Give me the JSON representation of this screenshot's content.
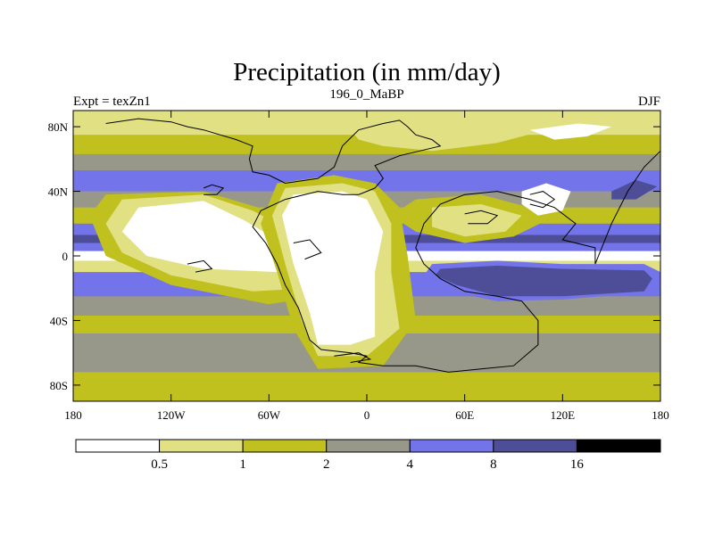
{
  "title": "Precipitation (in mm/day)",
  "subtitle_left": "Expt = texZn1",
  "subtitle_center": "196_0_MaBP",
  "subtitle_right": "DJF",
  "lat_ticks": [
    {
      "value": 80,
      "label": "80N"
    },
    {
      "value": 40,
      "label": "40N"
    },
    {
      "value": 0,
      "label": "0"
    },
    {
      "value": -40,
      "label": "40S"
    },
    {
      "value": -80,
      "label": "80S"
    }
  ],
  "lon_ticks": [
    {
      "value": -180,
      "label": "180"
    },
    {
      "value": -120,
      "label": "120W"
    },
    {
      "value": -60,
      "label": "60W"
    },
    {
      "value": 0,
      "label": "0"
    },
    {
      "value": 60,
      "label": "60E"
    },
    {
      "value": 120,
      "label": "120E"
    },
    {
      "value": 180,
      "label": "180"
    }
  ],
  "colorbar": {
    "levels": [
      "0.5",
      "1",
      "2",
      "4",
      "8",
      "16"
    ],
    "colors": [
      "#ffffff",
      "#e1e184",
      "#c0c01e",
      "#97978a",
      "#7474ea",
      "#4e4e98",
      "#000000"
    ]
  },
  "chart_data": {
    "type": "heatmap",
    "title": "Precipitation (in mm/day)",
    "variable": "Precipitation",
    "units": "mm/day",
    "experiment": "texZn1",
    "period": "196_0_MaBP",
    "season": "DJF",
    "lon_range": [
      -180,
      180
    ],
    "lat_range": [
      -90,
      90
    ],
    "contour_levels": [
      0.5,
      1,
      2,
      4,
      8,
      16
    ],
    "zonal_bands": [
      {
        "lat_from": 90,
        "lat_to": 75,
        "class": 1
      },
      {
        "lat_from": 75,
        "lat_to": 63,
        "class": 2
      },
      {
        "lat_from": 63,
        "lat_to": 53,
        "class": 3
      },
      {
        "lat_from": 53,
        "lat_to": 40,
        "class": 4
      },
      {
        "lat_from": 40,
        "lat_to": 30,
        "class": 3
      },
      {
        "lat_from": 30,
        "lat_to": 20,
        "class": 2
      },
      {
        "lat_from": 20,
        "lat_to": 13,
        "class": 4
      },
      {
        "lat_from": 13,
        "lat_to": 8,
        "class": 5
      },
      {
        "lat_from": 8,
        "lat_to": 3,
        "class": 4
      },
      {
        "lat_from": 3,
        "lat_to": -3,
        "class": 0
      },
      {
        "lat_from": -3,
        "lat_to": -10,
        "class": 1
      },
      {
        "lat_from": -10,
        "lat_to": -25,
        "class": 4
      },
      {
        "lat_from": -25,
        "lat_to": -37,
        "class": 3
      },
      {
        "lat_from": -37,
        "lat_to": -48,
        "class": 2
      },
      {
        "lat_from": -48,
        "lat_to": -72,
        "class": 3
      },
      {
        "lat_from": -72,
        "lat_to": -90,
        "class": 2
      }
    ],
    "regions": [
      {
        "class": 2,
        "points": [
          [
            -160,
            38
          ],
          [
            -100,
            40
          ],
          [
            -60,
            28
          ],
          [
            -30,
            12
          ],
          [
            -20,
            -5
          ],
          [
            -30,
            -25
          ],
          [
            -60,
            -30
          ],
          [
            -120,
            -18
          ],
          [
            -160,
            0
          ],
          [
            -170,
            25
          ]
        ]
      },
      {
        "class": 1,
        "points": [
          [
            -150,
            35
          ],
          [
            -100,
            38
          ],
          [
            -70,
            28
          ],
          [
            -40,
            12
          ],
          [
            -25,
            -5
          ],
          [
            -35,
            -20
          ],
          [
            -70,
            -22
          ],
          [
            -120,
            -12
          ],
          [
            -150,
            2
          ],
          [
            -160,
            20
          ]
        ]
      },
      {
        "class": 0,
        "points": [
          [
            -140,
            30
          ],
          [
            -100,
            34
          ],
          [
            -75,
            22
          ],
          [
            -55,
            10
          ],
          [
            -40,
            -5
          ],
          [
            -55,
            -10
          ],
          [
            -100,
            -8
          ],
          [
            -135,
            0
          ],
          [
            -150,
            15
          ]
        ]
      },
      {
        "class": 2,
        "points": [
          [
            -55,
            45
          ],
          [
            -20,
            50
          ],
          [
            5,
            45
          ],
          [
            20,
            30
          ],
          [
            25,
            0
          ],
          [
            30,
            -40
          ],
          [
            10,
            -68
          ],
          [
            -30,
            -70
          ],
          [
            -45,
            -45
          ],
          [
            -55,
            -10
          ],
          [
            -65,
            20
          ]
        ]
      },
      {
        "class": 1,
        "points": [
          [
            -50,
            42
          ],
          [
            -15,
            45
          ],
          [
            5,
            40
          ],
          [
            15,
            20
          ],
          [
            15,
            -10
          ],
          [
            20,
            -45
          ],
          [
            0,
            -62
          ],
          [
            -30,
            -62
          ],
          [
            -40,
            -40
          ],
          [
            -50,
            -5
          ],
          [
            -58,
            25
          ]
        ]
      },
      {
        "class": 0,
        "points": [
          [
            -45,
            38
          ],
          [
            -15,
            40
          ],
          [
            0,
            35
          ],
          [
            10,
            15
          ],
          [
            5,
            -10
          ],
          [
            5,
            -50
          ],
          [
            -10,
            -55
          ],
          [
            -30,
            -55
          ],
          [
            -35,
            -35
          ],
          [
            -45,
            -5
          ],
          [
            -52,
            25
          ]
        ]
      },
      {
        "class": 4,
        "points": [
          [
            40,
            -5
          ],
          [
            80,
            -3
          ],
          [
            120,
            -5
          ],
          [
            170,
            -5
          ],
          [
            180,
            -10
          ],
          [
            180,
            -22
          ],
          [
            120,
            -27
          ],
          [
            80,
            -28
          ],
          [
            50,
            -22
          ],
          [
            35,
            -12
          ]
        ]
      },
      {
        "class": 5,
        "points": [
          [
            45,
            -8
          ],
          [
            80,
            -6
          ],
          [
            120,
            -8
          ],
          [
            170,
            -9
          ],
          [
            175,
            -14
          ],
          [
            170,
            -22
          ],
          [
            120,
            -25
          ],
          [
            80,
            -25
          ],
          [
            55,
            -18
          ],
          [
            42,
            -12
          ]
        ]
      },
      {
        "class": 2,
        "points": [
          [
            30,
            35
          ],
          [
            70,
            38
          ],
          [
            100,
            30
          ],
          [
            110,
            22
          ],
          [
            90,
            12
          ],
          [
            60,
            8
          ],
          [
            30,
            15
          ],
          [
            15,
            25
          ]
        ]
      },
      {
        "class": 1,
        "points": [
          [
            40,
            30
          ],
          [
            70,
            32
          ],
          [
            95,
            25
          ],
          [
            85,
            15
          ],
          [
            60,
            12
          ],
          [
            40,
            18
          ]
        ]
      },
      {
        "class": 1,
        "points": [
          [
            -10,
            78
          ],
          [
            20,
            85
          ],
          [
            70,
            82
          ],
          [
            110,
            78
          ],
          [
            80,
            70
          ],
          [
            40,
            65
          ],
          [
            10,
            68
          ],
          [
            -5,
            72
          ]
        ]
      },
      {
        "class": 0,
        "points": [
          [
            95,
            40
          ],
          [
            110,
            45
          ],
          [
            125,
            40
          ],
          [
            120,
            28
          ],
          [
            105,
            25
          ],
          [
            95,
            32
          ]
        ]
      },
      {
        "class": 5,
        "points": [
          [
            150,
            40
          ],
          [
            165,
            47
          ],
          [
            178,
            43
          ],
          [
            165,
            35
          ],
          [
            150,
            35
          ]
        ]
      },
      {
        "class": 0,
        "points": [
          [
            100,
            78
          ],
          [
            130,
            82
          ],
          [
            150,
            80
          ],
          [
            135,
            74
          ],
          [
            115,
            72
          ]
        ]
      }
    ],
    "continent_outlines": [
      [
        [
          -160,
          82
        ],
        [
          -140,
          85
        ],
        [
          -120,
          83
        ],
        [
          -110,
          80
        ],
        [
          -100,
          78
        ],
        [
          -90,
          75
        ],
        [
          -80,
          72
        ],
        [
          -75,
          70
        ],
        [
          -70,
          68
        ],
        [
          -72,
          60
        ],
        [
          -70,
          52
        ],
        [
          -60,
          50
        ],
        [
          -50,
          45
        ],
        [
          -30,
          48
        ],
        [
          -20,
          55
        ],
        [
          -15,
          68
        ],
        [
          -5,
          78
        ],
        [
          10,
          82
        ],
        [
          20,
          84
        ],
        [
          25,
          80
        ],
        [
          30,
          75
        ],
        [
          40,
          72
        ],
        [
          45,
          68
        ],
        [
          20,
          62
        ],
        [
          5,
          56
        ],
        [
          10,
          48
        ],
        [
          5,
          42
        ],
        [
          0,
          40
        ],
        [
          -5,
          38
        ],
        [
          -15,
          38
        ],
        [
          -30,
          40
        ],
        [
          -50,
          35
        ],
        [
          -65,
          28
        ],
        [
          -70,
          18
        ],
        [
          -62,
          8
        ],
        [
          -55,
          -5
        ],
        [
          -50,
          -18
        ],
        [
          -42,
          -32
        ],
        [
          -35,
          -52
        ],
        [
          -28,
          -58
        ],
        [
          -10,
          -60
        ],
        [
          0,
          -62
        ],
        [
          -5,
          -66
        ],
        [
          10,
          -68
        ],
        [
          30,
          -68
        ],
        [
          50,
          -72
        ],
        [
          70,
          -70
        ],
        [
          90,
          -68
        ],
        [
          105,
          -55
        ],
        [
          105,
          -40
        ],
        [
          95,
          -28
        ],
        [
          80,
          -25
        ],
        [
          60,
          -22
        ],
        [
          45,
          -14
        ],
        [
          35,
          -5
        ],
        [
          30,
          5
        ],
        [
          35,
          20
        ],
        [
          45,
          32
        ],
        [
          60,
          38
        ],
        [
          80,
          40
        ],
        [
          100,
          35
        ],
        [
          115,
          30
        ],
        [
          128,
          20
        ],
        [
          120,
          10
        ],
        [
          140,
          5
        ],
        [
          140,
          -5
        ],
        [
          150,
          20
        ],
        [
          160,
          40
        ],
        [
          170,
          55
        ],
        [
          180,
          65
        ]
      ],
      [
        [
          -100,
          42
        ],
        [
          -95,
          44
        ],
        [
          -88,
          42
        ],
        [
          -92,
          38
        ],
        [
          -100,
          38
        ]
      ],
      [
        [
          60,
          26
        ],
        [
          70,
          28
        ],
        [
          80,
          25
        ],
        [
          74,
          20
        ],
        [
          62,
          20
        ]
      ],
      [
        [
          -45,
          8
        ],
        [
          -35,
          10
        ],
        [
          -28,
          2
        ],
        [
          -38,
          -2
        ]
      ],
      [
        [
          -110,
          -5
        ],
        [
          -100,
          -3
        ],
        [
          -95,
          -8
        ],
        [
          -105,
          -10
        ]
      ],
      [
        [
          100,
          38
        ],
        [
          108,
          40
        ],
        [
          115,
          35
        ],
        [
          108,
          30
        ],
        [
          100,
          32
        ]
      ],
      [
        [
          -20,
          -62
        ],
        [
          -5,
          -60
        ],
        [
          2,
          -64
        ],
        [
          -10,
          -66
        ]
      ]
    ]
  }
}
